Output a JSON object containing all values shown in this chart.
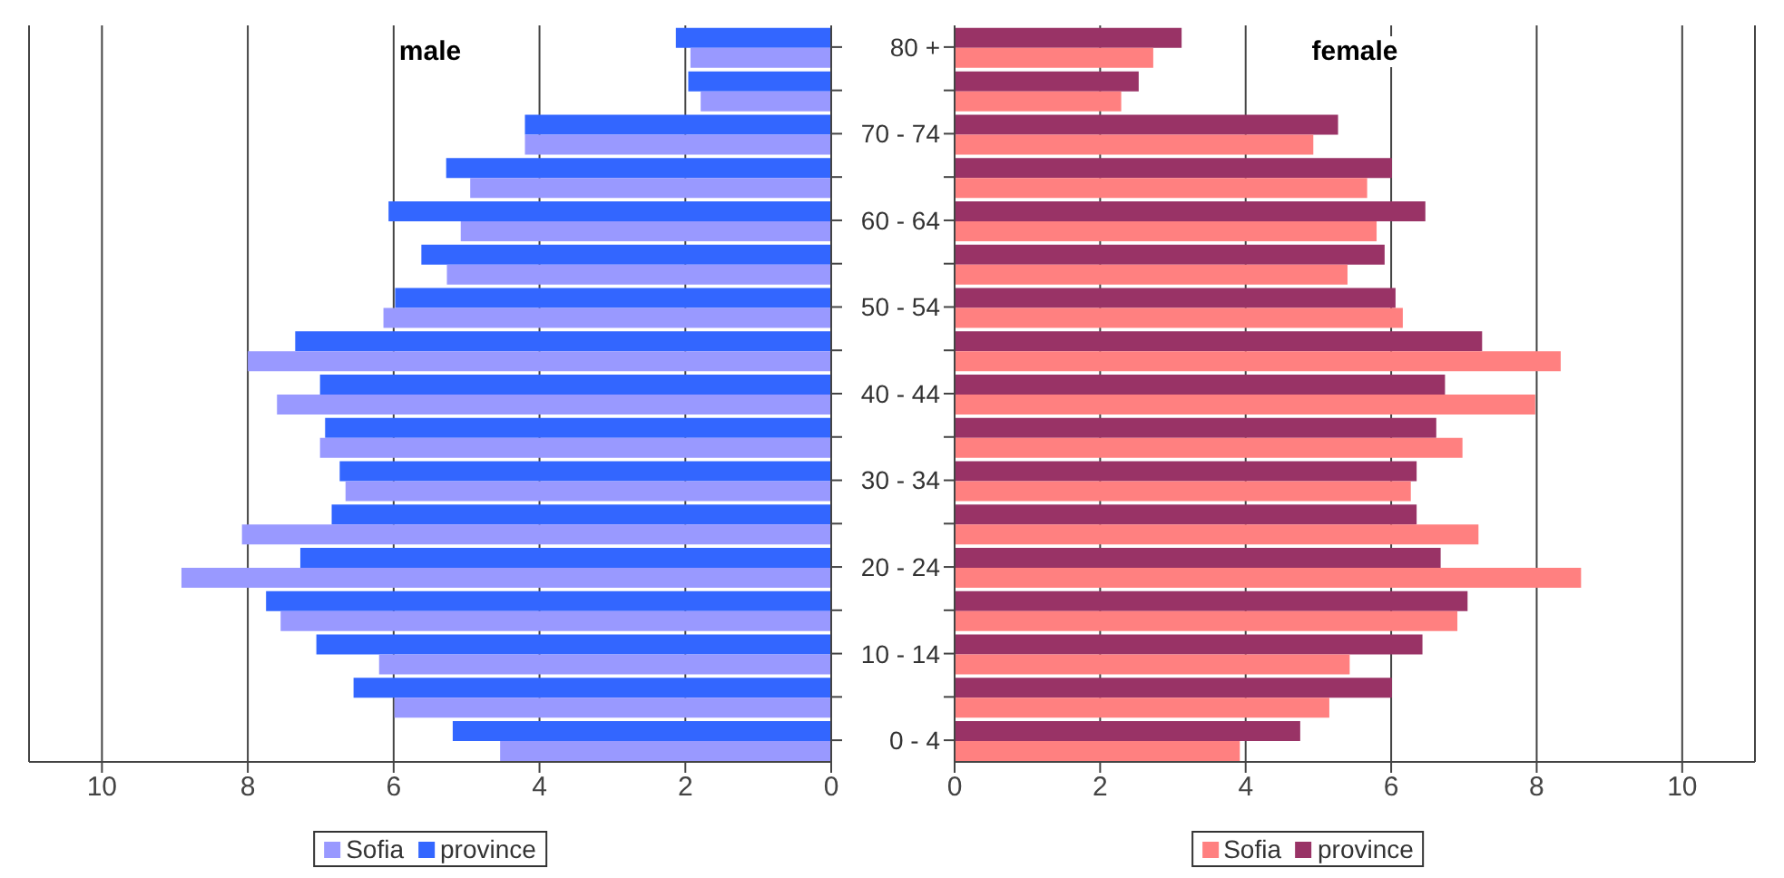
{
  "chart_data": [
    {
      "type": "bar",
      "orientation": "horizontal",
      "title": "male",
      "categories": [
        null,
        null,
        null,
        null,
        null,
        null,
        null,
        null,
        null,
        null,
        null,
        null,
        null,
        null,
        null,
        null,
        null
      ],
      "series": [
        {
          "name": "Sofia",
          "color": "#9999ff",
          "values": [
            1.93,
            1.79,
            4.2,
            4.95,
            5.08,
            5.27,
            6.14,
            8.0,
            7.6,
            7.01,
            6.66,
            8.08,
            8.91,
            7.55,
            6.2,
            5.99,
            4.54
          ]
        },
        {
          "name": "province",
          "color": "#3366ff",
          "values": [
            2.13,
            1.96,
            4.2,
            5.28,
            6.07,
            5.62,
            5.98,
            7.35,
            7.01,
            6.94,
            6.74,
            6.85,
            7.28,
            7.75,
            7.06,
            6.55,
            5.19
          ]
        }
      ],
      "xlim": [
        11,
        0
      ],
      "xticks": [
        10,
        8,
        6,
        4,
        2,
        0
      ],
      "grid": "x",
      "legend": "bottom",
      "tick_labels": "x"
    },
    {
      "type": "bar",
      "orientation": "horizontal",
      "title": "female",
      "categories": [
        "80 +",
        null,
        "70 - 74",
        null,
        "60 - 64",
        null,
        "50 - 54",
        null,
        "40 - 44",
        null,
        "30 - 34",
        null,
        "20 - 24",
        null,
        "10 - 14",
        null,
        "0 - 4"
      ],
      "series": [
        {
          "name": "Sofia",
          "color": "#ff8080",
          "values": [
            2.73,
            2.29,
            4.93,
            5.67,
            5.8,
            5.4,
            6.16,
            8.33,
            7.98,
            6.98,
            6.27,
            7.2,
            8.61,
            6.91,
            5.43,
            5.15,
            3.92
          ]
        },
        {
          "name": "province",
          "color": "#993366",
          "values": [
            3.12,
            2.53,
            5.27,
            6.01,
            6.47,
            5.91,
            6.06,
            7.25,
            6.74,
            6.62,
            6.35,
            6.35,
            6.68,
            7.05,
            6.43,
            6.01,
            4.75
          ]
        }
      ],
      "xlim": [
        0,
        11
      ],
      "xticks": [
        0,
        2,
        4,
        6,
        8,
        10
      ],
      "grid": "x",
      "legend": "bottom"
    }
  ]
}
